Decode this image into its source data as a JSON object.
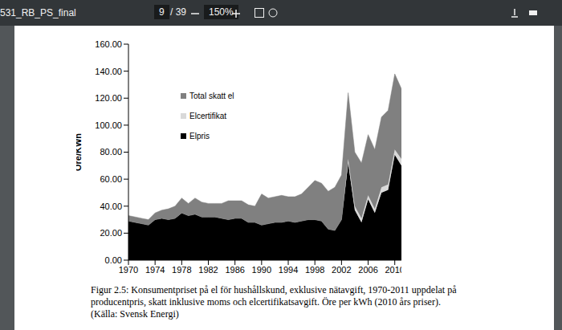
{
  "viewer": {
    "file": "531_RB_PS_final",
    "page": "9",
    "pages": "/ 39",
    "zoom": "150%"
  },
  "chart_data": {
    "type": "area",
    "stacked": true,
    "y_label": "Öre/KWh",
    "x": [
      1970,
      1971,
      1972,
      1973,
      1974,
      1975,
      1976,
      1977,
      1978,
      1979,
      1980,
      1981,
      1982,
      1983,
      1984,
      1985,
      1986,
      1987,
      1988,
      1989,
      1990,
      1991,
      1992,
      1993,
      1994,
      1995,
      1996,
      1997,
      1998,
      1999,
      2000,
      2001,
      2002,
      2003,
      2004,
      2005,
      2006,
      2007,
      2008,
      2009,
      2010,
      2011
    ],
    "series": [
      {
        "name": "Elpris",
        "color": "#000000",
        "values": [
          29,
          28,
          27,
          26,
          30,
          31,
          30,
          31,
          35,
          33,
          34,
          32,
          32,
          32,
          31,
          30,
          31,
          31,
          28,
          28,
          26,
          27,
          28,
          28,
          29,
          28,
          29,
          30,
          30,
          29,
          23,
          22,
          30,
          72,
          37,
          28,
          45,
          35,
          50,
          52,
          78,
          70
        ]
      },
      {
        "name": "Elcertifikat",
        "color": "#d9d9d9",
        "values": [
          0,
          0,
          0,
          0,
          0,
          0,
          0,
          0,
          0,
          0,
          0,
          0,
          0,
          0,
          0,
          0,
          0,
          0,
          0,
          0,
          0,
          0,
          0,
          0,
          0,
          0,
          0,
          0,
          0,
          0,
          0,
          0,
          0,
          3,
          3,
          3,
          3,
          3,
          4,
          4,
          4,
          5
        ]
      },
      {
        "name": "Total skatt el",
        "color": "#808080",
        "values": [
          4,
          4,
          4,
          4,
          5,
          6,
          8,
          9,
          11,
          9,
          12,
          11,
          10,
          10,
          11,
          14,
          13,
          13,
          13,
          12,
          23,
          19,
          19,
          20,
          18,
          19,
          20,
          24,
          29,
          28,
          28,
          32,
          33,
          49,
          40,
          41,
          45,
          44,
          52,
          55,
          56,
          52
        ]
      }
    ],
    "xlim": [
      1970,
      2011
    ],
    "xticks": [
      1970,
      1974,
      1978,
      1982,
      1986,
      1990,
      1994,
      1998,
      2002,
      2006,
      2010
    ],
    "ylim": [
      0,
      160
    ],
    "yticks": [
      {
        "value": 0,
        "label": "0.00"
      },
      {
        "value": 20,
        "label": "20.00"
      },
      {
        "value": 40,
        "label": "40.00"
      },
      {
        "value": 60,
        "label": "60.00"
      },
      {
        "value": 80,
        "label": "80.00"
      },
      {
        "value": 100,
        "label": "100.00"
      },
      {
        "value": 120,
        "label": "120.00"
      },
      {
        "value": 140,
        "label": "140.00"
      },
      {
        "value": 160,
        "label": "160.00"
      }
    ],
    "grid": false,
    "legend": "upper left",
    "caption": [
      "Figur 2.5: Konsumentpriset på el för hushållskund, exklusive nätavgift, 1970-2011 uppdelat på",
      "producentpris, skatt inklusive moms och elcertifikatsavgift. Öre per kWh (2010 års priser).",
      "(Källa: Svensk Energi)"
    ]
  }
}
